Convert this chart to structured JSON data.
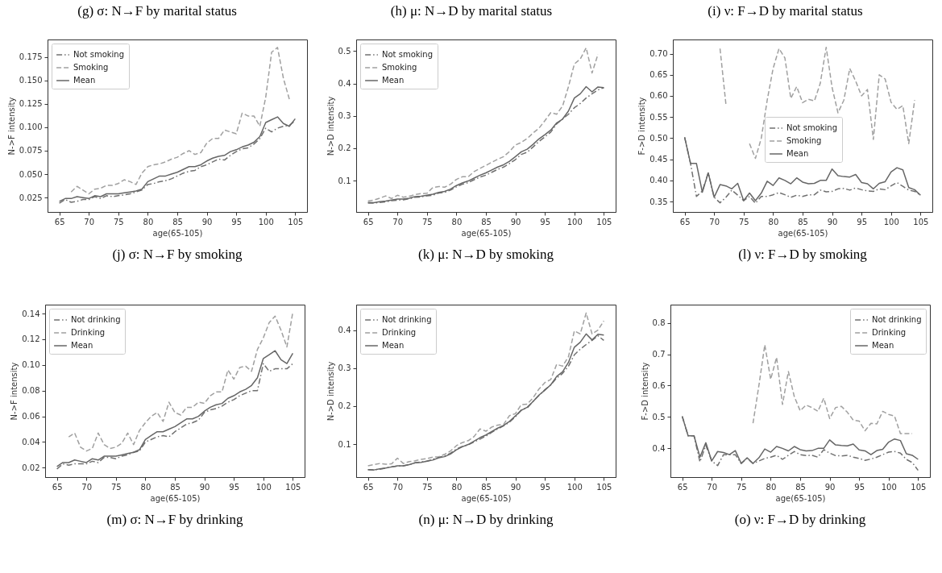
{
  "chart_data": [
    {
      "type": "line",
      "title": "(j) σ: N→F by smoking",
      "annotations": [
        "(g) σ: N→F by marital status"
      ],
      "xlabel": "age(65-105)",
      "ylabel": "N->F intensity",
      "xlim": [
        63,
        107
      ],
      "ylim": [
        0.0097,
        0.1935
      ],
      "xticks": [
        65,
        70,
        75,
        80,
        85,
        90,
        95,
        100,
        105
      ],
      "yticks": [
        0.025,
        {
          "value": 0.05,
          "label": "0.050"
        },
        0.075,
        {
          "value": 0.1,
          "label": "0.100"
        },
        0.125,
        {
          "value": 0.15,
          "label": "0.150"
        },
        0.175
      ],
      "legend": "top left",
      "x": [
        65,
        66,
        67,
        68,
        69,
        70,
        71,
        72,
        73,
        74,
        75,
        76,
        77,
        78,
        79,
        80,
        81,
        82,
        83,
        84,
        85,
        86,
        87,
        88,
        89,
        90,
        91,
        92,
        93,
        94,
        95,
        96,
        97,
        98,
        99,
        100,
        101,
        102,
        103,
        104,
        105
      ],
      "series": [
        {
          "name": "Not smoking",
          "color": "#707070",
          "line_style": "dashdot",
          "values": [
            0.019,
            0.023,
            0.02,
            0.021,
            0.023,
            0.023,
            0.026,
            0.024,
            0.027,
            0.026,
            0.027,
            0.028,
            0.029,
            0.031,
            0.033,
            0.039,
            0.04,
            0.042,
            0.043,
            0.045,
            0.048,
            0.051,
            0.053,
            0.054,
            0.058,
            0.06,
            0.063,
            0.066,
            0.065,
            0.07,
            0.074,
            0.077,
            0.078,
            0.082,
            0.088,
            0.099,
            0.095,
            0.099,
            0.101,
            0.102,
            0.107
          ]
        },
        {
          "name": "Smoking",
          "color": "#a0a0a0",
          "line_style": "dashed",
          "values": [
            null,
            null,
            0.031,
            0.037,
            0.033,
            0.029,
            0.034,
            0.035,
            0.038,
            0.038,
            0.04,
            0.044,
            0.042,
            0.039,
            0.051,
            0.058,
            0.06,
            0.061,
            0.063,
            0.066,
            0.068,
            0.072,
            0.075,
            0.071,
            0.073,
            0.083,
            0.088,
            0.088,
            0.097,
            0.095,
            0.093,
            0.115,
            0.112,
            0.112,
            0.101,
            0.132,
            0.18,
            0.185,
            0.152,
            0.13,
            null
          ]
        },
        {
          "name": "Mean",
          "color": "#666666",
          "line_style": "solid",
          "values": [
            0.021,
            0.024,
            0.024,
            0.026,
            0.025,
            0.024,
            0.027,
            0.026,
            0.029,
            0.029,
            0.029,
            0.03,
            0.031,
            0.032,
            0.034,
            0.042,
            0.045,
            0.048,
            0.048,
            0.05,
            0.052,
            0.055,
            0.058,
            0.058,
            0.06,
            0.064,
            0.067,
            0.069,
            0.07,
            0.074,
            0.076,
            0.079,
            0.081,
            0.084,
            0.09,
            0.105,
            0.108,
            0.111,
            0.104,
            0.101,
            0.109
          ]
        }
      ]
    },
    {
      "type": "line",
      "title": "(k) μ: N→D by smoking",
      "annotations": [
        "(h) μ: N→D by marital status"
      ],
      "xlabel": "age(65-105)",
      "ylabel": "N->D intensity",
      "xlim": [
        63,
        107
      ],
      "ylim": [
        0.0035,
        0.5355
      ],
      "xticks": [
        65,
        70,
        75,
        80,
        85,
        90,
        95,
        100,
        105
      ],
      "yticks": [
        0.1,
        0.2,
        0.3,
        0.4,
        0.5
      ],
      "legend": "top left",
      "x": [
        65,
        66,
        67,
        68,
        69,
        70,
        71,
        72,
        73,
        74,
        75,
        76,
        77,
        78,
        79,
        80,
        81,
        82,
        83,
        84,
        85,
        86,
        87,
        88,
        89,
        90,
        91,
        92,
        93,
        94,
        95,
        96,
        97,
        98,
        99,
        100,
        101,
        102,
        103,
        104,
        105
      ],
      "series": [
        {
          "name": "Not smoking",
          "color": "#707070",
          "line_style": "dashdot",
          "values": [
            0.031,
            0.031,
            0.033,
            0.035,
            0.038,
            0.04,
            0.041,
            0.044,
            0.049,
            0.05,
            0.053,
            0.055,
            0.062,
            0.064,
            0.071,
            0.081,
            0.089,
            0.094,
            0.103,
            0.111,
            0.117,
            0.126,
            0.135,
            0.142,
            0.153,
            0.165,
            0.181,
            0.188,
            0.204,
            0.221,
            0.235,
            0.25,
            0.275,
            0.29,
            0.305,
            0.325,
            0.338,
            0.355,
            0.368,
            0.38,
            0.387
          ]
        },
        {
          "name": "Smoking",
          "color": "#a0a0a0",
          "line_style": "dashed",
          "values": [
            0.037,
            0.04,
            0.046,
            0.053,
            0.045,
            0.055,
            0.049,
            0.052,
            0.057,
            0.06,
            0.061,
            0.079,
            0.082,
            0.08,
            0.089,
            0.104,
            0.112,
            0.112,
            0.128,
            0.138,
            0.147,
            0.157,
            0.166,
            0.174,
            0.19,
            0.21,
            0.218,
            0.23,
            0.247,
            0.262,
            0.285,
            0.31,
            0.305,
            0.33,
            0.39,
            0.46,
            0.475,
            0.51,
            0.432,
            0.49,
            null
          ]
        },
        {
          "name": "Mean",
          "color": "#666666",
          "line_style": "solid",
          "values": [
            0.033,
            0.032,
            0.035,
            0.037,
            0.04,
            0.043,
            0.043,
            0.046,
            0.051,
            0.052,
            0.055,
            0.058,
            0.064,
            0.067,
            0.074,
            0.085,
            0.093,
            0.099,
            0.108,
            0.117,
            0.124,
            0.133,
            0.142,
            0.149,
            0.16,
            0.174,
            0.189,
            0.197,
            0.212,
            0.229,
            0.242,
            0.256,
            0.278,
            0.29,
            0.315,
            0.355,
            0.368,
            0.39,
            0.374,
            0.389,
            0.387
          ]
        }
      ]
    },
    {
      "type": "line",
      "title": "(l) ν: F→D by smoking",
      "annotations": [
        "(i) ν: F→D by marital status"
      ],
      "xlabel": "age(65-105)",
      "ylabel": "F->D intensity",
      "xlim": [
        63,
        107
      ],
      "ylim": [
        0.3253,
        0.7335
      ],
      "xticks": [
        65,
        70,
        75,
        80,
        85,
        90,
        95,
        100,
        105
      ],
      "yticks": [
        0.35,
        {
          "value": 0.4,
          "label": "0.40"
        },
        0.45,
        {
          "value": 0.5,
          "label": "0.50"
        },
        0.55,
        {
          "value": 0.6,
          "label": "0.60"
        },
        0.65,
        {
          "value": 0.7,
          "label": "0.70"
        }
      ],
      "legend": "center",
      "x": [
        65,
        66,
        67,
        68,
        69,
        70,
        71,
        72,
        73,
        74,
        75,
        76,
        77,
        78,
        79,
        80,
        81,
        82,
        83,
        84,
        85,
        86,
        87,
        88,
        89,
        90,
        91,
        92,
        93,
        94,
        95,
        96,
        97,
        98,
        99,
        100,
        101,
        102,
        103,
        104,
        105
      ],
      "series": [
        {
          "name": "Not smoking",
          "color": "#707070",
          "line_style": "dashdot",
          "values": [
            0.502,
            0.44,
            0.362,
            0.375,
            0.418,
            0.36,
            0.347,
            0.36,
            0.377,
            0.365,
            0.352,
            0.362,
            0.346,
            0.362,
            0.362,
            0.366,
            0.371,
            0.366,
            0.36,
            0.365,
            0.362,
            0.366,
            0.366,
            0.377,
            0.373,
            0.374,
            0.38,
            0.381,
            0.377,
            0.382,
            0.378,
            0.375,
            0.374,
            0.38,
            0.378,
            0.387,
            0.395,
            0.386,
            0.377,
            0.374,
            0.365
          ]
        },
        {
          "name": "Smoking",
          "color": "#a0a0a0",
          "line_style": "dashed",
          "values": [
            null,
            null,
            null,
            null,
            null,
            null,
            0.712,
            0.58,
            null,
            null,
            null,
            0.487,
            0.452,
            0.5,
            0.59,
            0.665,
            0.712,
            0.69,
            0.594,
            0.622,
            0.584,
            0.592,
            0.588,
            0.63,
            0.715,
            0.62,
            0.56,
            0.59,
            0.665,
            0.635,
            0.6,
            0.615,
            0.497,
            0.65,
            0.64,
            0.585,
            0.568,
            0.577,
            0.487,
            0.59,
            null
          ]
        },
        {
          "name": "Mean",
          "color": "#666666",
          "line_style": "solid",
          "values": [
            0.502,
            0.44,
            0.44,
            0.372,
            0.418,
            0.36,
            0.39,
            0.387,
            0.38,
            0.393,
            0.352,
            0.37,
            0.352,
            0.37,
            0.398,
            0.388,
            0.406,
            0.4,
            0.392,
            0.406,
            0.396,
            0.392,
            0.393,
            0.4,
            0.4,
            0.427,
            0.411,
            0.409,
            0.408,
            0.414,
            0.395,
            0.392,
            0.38,
            0.393,
            0.397,
            0.42,
            0.43,
            0.425,
            0.383,
            0.378,
            0.365
          ]
        }
      ]
    },
    {
      "type": "line",
      "title": "(m) σ: N→F by drinking",
      "xlabel": "age(65-105)",
      "ylabel": "N->F intensity",
      "xlim": [
        63,
        107
      ],
      "ylim": [
        0.0127,
        0.1469
      ],
      "xticks": [
        65,
        70,
        75,
        80,
        85,
        90,
        95,
        100,
        105
      ],
      "yticks": [
        0.02,
        0.04,
        0.06,
        0.08,
        {
          "value": 0.1,
          "label": "0.10"
        },
        0.12,
        0.14
      ],
      "legend": "top left",
      "x": [
        65,
        66,
        67,
        68,
        69,
        70,
        71,
        72,
        73,
        74,
        75,
        76,
        77,
        78,
        79,
        80,
        81,
        82,
        83,
        84,
        85,
        86,
        87,
        88,
        89,
        90,
        91,
        92,
        93,
        94,
        95,
        96,
        97,
        98,
        99,
        100,
        101,
        102,
        103,
        104,
        105
      ],
      "series": [
        {
          "name": "Not drinking",
          "color": "#707070",
          "line_style": "dashdot",
          "values": [
            0.019,
            0.023,
            0.022,
            0.023,
            0.023,
            0.023,
            0.025,
            0.024,
            0.028,
            0.028,
            0.027,
            0.029,
            0.03,
            0.032,
            0.033,
            0.04,
            0.042,
            0.044,
            0.045,
            0.044,
            0.048,
            0.051,
            0.054,
            0.055,
            0.057,
            0.063,
            0.065,
            0.066,
            0.068,
            0.071,
            0.073,
            0.076,
            0.078,
            0.08,
            0.08,
            0.101,
            0.095,
            0.097,
            0.097,
            0.097,
            0.101
          ]
        },
        {
          "name": "Drinking",
          "color": "#a0a0a0",
          "line_style": "dashed",
          "values": [
            null,
            null,
            0.044,
            0.047,
            0.036,
            0.033,
            0.035,
            0.047,
            0.038,
            0.035,
            0.036,
            0.039,
            0.047,
            0.038,
            0.049,
            0.055,
            0.06,
            0.063,
            0.056,
            0.071,
            0.063,
            0.061,
            0.067,
            0.067,
            0.071,
            0.07,
            0.076,
            0.079,
            0.079,
            0.096,
            0.089,
            0.098,
            0.099,
            0.095,
            0.112,
            0.121,
            0.133,
            0.138,
            0.127,
            0.114,
            0.141
          ]
        },
        {
          "name": "Mean",
          "color": "#666666",
          "line_style": "solid",
          "values": [
            0.021,
            0.024,
            0.024,
            0.026,
            0.025,
            0.024,
            0.027,
            0.026,
            0.029,
            0.029,
            0.029,
            0.03,
            0.031,
            0.032,
            0.034,
            0.042,
            0.045,
            0.048,
            0.048,
            0.05,
            0.052,
            0.055,
            0.058,
            0.058,
            0.06,
            0.064,
            0.067,
            0.069,
            0.07,
            0.074,
            0.076,
            0.079,
            0.081,
            0.084,
            0.09,
            0.105,
            0.108,
            0.111,
            0.104,
            0.101,
            0.109
          ]
        }
      ]
    },
    {
      "type": "line",
      "title": "(n) μ: N→D by drinking",
      "xlabel": "age(65-105)",
      "ylabel": "N->D intensity",
      "xlim": [
        63,
        107
      ],
      "ylim": [
        0.0132,
        0.467
      ],
      "xticks": [
        65,
        70,
        75,
        80,
        85,
        90,
        95,
        100,
        105
      ],
      "yticks": [
        0.1,
        0.2,
        0.3,
        0.4
      ],
      "legend": "top left",
      "x": [
        65,
        66,
        67,
        68,
        69,
        70,
        71,
        72,
        73,
        74,
        75,
        76,
        77,
        78,
        79,
        80,
        81,
        82,
        83,
        84,
        85,
        86,
        87,
        88,
        89,
        90,
        91,
        92,
        93,
        94,
        95,
        96,
        97,
        98,
        99,
        100,
        101,
        102,
        103,
        104,
        105
      ],
      "series": [
        {
          "name": "Not drinking",
          "color": "#707070",
          "line_style": "dashdot",
          "values": [
            0.033,
            0.032,
            0.034,
            0.037,
            0.04,
            0.042,
            0.043,
            0.046,
            0.051,
            0.053,
            0.055,
            0.06,
            0.065,
            0.069,
            0.076,
            0.087,
            0.094,
            0.098,
            0.106,
            0.113,
            0.121,
            0.131,
            0.14,
            0.148,
            0.158,
            0.172,
            0.19,
            0.195,
            0.213,
            0.228,
            0.243,
            0.256,
            0.274,
            0.286,
            0.305,
            0.335,
            0.35,
            0.362,
            0.373,
            0.385,
            0.373
          ]
        },
        {
          "name": "Drinking",
          "color": "#a0a0a0",
          "line_style": "dashed",
          "values": [
            0.043,
            0.046,
            0.049,
            0.047,
            0.048,
            0.063,
            0.049,
            0.054,
            0.056,
            0.06,
            0.062,
            0.066,
            0.067,
            0.073,
            0.082,
            0.096,
            0.104,
            0.109,
            0.12,
            0.14,
            0.134,
            0.145,
            0.15,
            0.152,
            0.175,
            0.18,
            0.204,
            0.205,
            0.222,
            0.245,
            0.262,
            0.27,
            0.31,
            0.305,
            0.33,
            0.398,
            0.39,
            0.445,
            0.39,
            0.4,
            0.424
          ]
        },
        {
          "name": "Mean",
          "color": "#666666",
          "line_style": "solid",
          "values": [
            0.033,
            0.032,
            0.035,
            0.037,
            0.04,
            0.043,
            0.043,
            0.046,
            0.051,
            0.052,
            0.055,
            0.058,
            0.064,
            0.067,
            0.074,
            0.085,
            0.093,
            0.099,
            0.108,
            0.117,
            0.124,
            0.133,
            0.142,
            0.149,
            0.16,
            0.174,
            0.189,
            0.197,
            0.212,
            0.229,
            0.242,
            0.256,
            0.278,
            0.29,
            0.315,
            0.355,
            0.368,
            0.39,
            0.374,
            0.389,
            0.387
          ]
        }
      ]
    },
    {
      "type": "line",
      "title": "(o) ν: F→D by drinking",
      "xlabel": "age(65-105)",
      "ylabel": "F->D intensity",
      "xlim": [
        63,
        107
      ],
      "ylim": [
        0.3085,
        0.858
      ],
      "xticks": [
        65,
        70,
        75,
        80,
        85,
        90,
        95,
        100,
        105
      ],
      "yticks": [
        0.4,
        0.5,
        0.6,
        0.7,
        0.8
      ],
      "legend": "top right",
      "x": [
        65,
        66,
        67,
        68,
        69,
        70,
        71,
        72,
        73,
        74,
        75,
        76,
        77,
        78,
        79,
        80,
        81,
        82,
        83,
        84,
        85,
        86,
        87,
        88,
        89,
        90,
        91,
        92,
        93,
        94,
        95,
        96,
        97,
        98,
        99,
        100,
        101,
        102,
        103,
        104,
        105
      ],
      "series": [
        {
          "name": "Not drinking",
          "color": "#707070",
          "line_style": "dashdot",
          "values": [
            0.502,
            0.44,
            0.44,
            0.357,
            0.41,
            0.36,
            0.345,
            0.38,
            0.38,
            0.38,
            0.352,
            0.368,
            0.352,
            0.36,
            0.368,
            0.372,
            0.378,
            0.365,
            0.378,
            0.39,
            0.38,
            0.377,
            0.378,
            0.372,
            0.396,
            0.385,
            0.377,
            0.376,
            0.378,
            0.372,
            0.368,
            0.362,
            0.366,
            0.372,
            0.38,
            0.388,
            0.39,
            0.385,
            0.365,
            0.355,
            0.33
          ]
        },
        {
          "name": "Drinking",
          "color": "#a0a0a0",
          "line_style": "dashed",
          "values": [
            null,
            null,
            null,
            null,
            null,
            null,
            null,
            null,
            null,
            null,
            null,
            null,
            0.48,
            0.6,
            0.73,
            0.62,
            0.69,
            0.54,
            0.645,
            0.565,
            0.52,
            0.538,
            0.53,
            0.518,
            0.56,
            0.495,
            0.53,
            0.534,
            0.515,
            0.49,
            0.487,
            0.456,
            0.48,
            0.478,
            0.518,
            0.508,
            0.503,
            0.447,
            0.447,
            0.447,
            null
          ]
        },
        {
          "name": "Mean",
          "color": "#666666",
          "line_style": "solid",
          "values": [
            0.502,
            0.44,
            0.44,
            0.372,
            0.418,
            0.36,
            0.39,
            0.387,
            0.38,
            0.393,
            0.352,
            0.37,
            0.352,
            0.37,
            0.398,
            0.388,
            0.406,
            0.4,
            0.392,
            0.406,
            0.396,
            0.392,
            0.393,
            0.4,
            0.4,
            0.427,
            0.411,
            0.409,
            0.408,
            0.414,
            0.395,
            0.392,
            0.38,
            0.393,
            0.397,
            0.42,
            0.43,
            0.425,
            0.383,
            0.378,
            0.365
          ]
        }
      ]
    }
  ]
}
